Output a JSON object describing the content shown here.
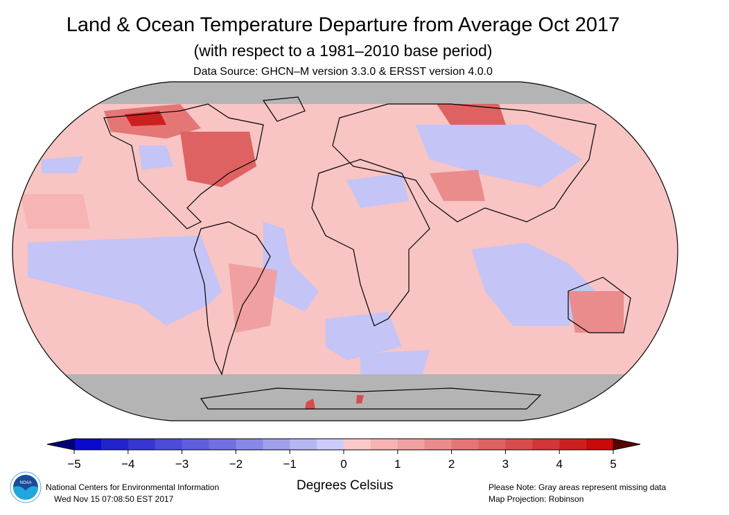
{
  "header": {
    "title": "Land & Ocean Temperature Departure from Average Oct 2017",
    "subtitle": "(with respect to a 1981–2010 base period)",
    "source": "Data Source: GHCN–M version 3.3.0 & ERSST version 4.0.0"
  },
  "map": {
    "projection": "Robinson",
    "missing_data_color": "#b4b4b4"
  },
  "legend": {
    "units": "Degrees Celsius",
    "ticks": [
      "−5",
      "−4",
      "−3",
      "−2",
      "−1",
      "0",
      "1",
      "2",
      "3",
      "4",
      "5"
    ],
    "range": [
      -5,
      5
    ],
    "step": 0.5,
    "under_color": "#00007a",
    "over_color": "#5a0000",
    "colors": [
      "#0a0acc",
      "#2222cc",
      "#3636d2",
      "#4c4cd8",
      "#5e5edc",
      "#7070e0",
      "#8888e6",
      "#a0a0ec",
      "#b6b6f2",
      "#ccccfc",
      "#fccaca",
      "#f6b4b4",
      "#f0a0a0",
      "#ea8c8c",
      "#e47676",
      "#de6262",
      "#d84c4c",
      "#d23636",
      "#cc2020",
      "#c80a0a"
    ]
  },
  "footer": {
    "org": "National Centers for Environmental Information",
    "timestamp": "Wed Nov 15 07:08:50 EST 2017",
    "note": "Please Note: Gray areas represent missing data",
    "projection_label": "Map Projection: Robinson",
    "logo_text": "NOAA"
  }
}
